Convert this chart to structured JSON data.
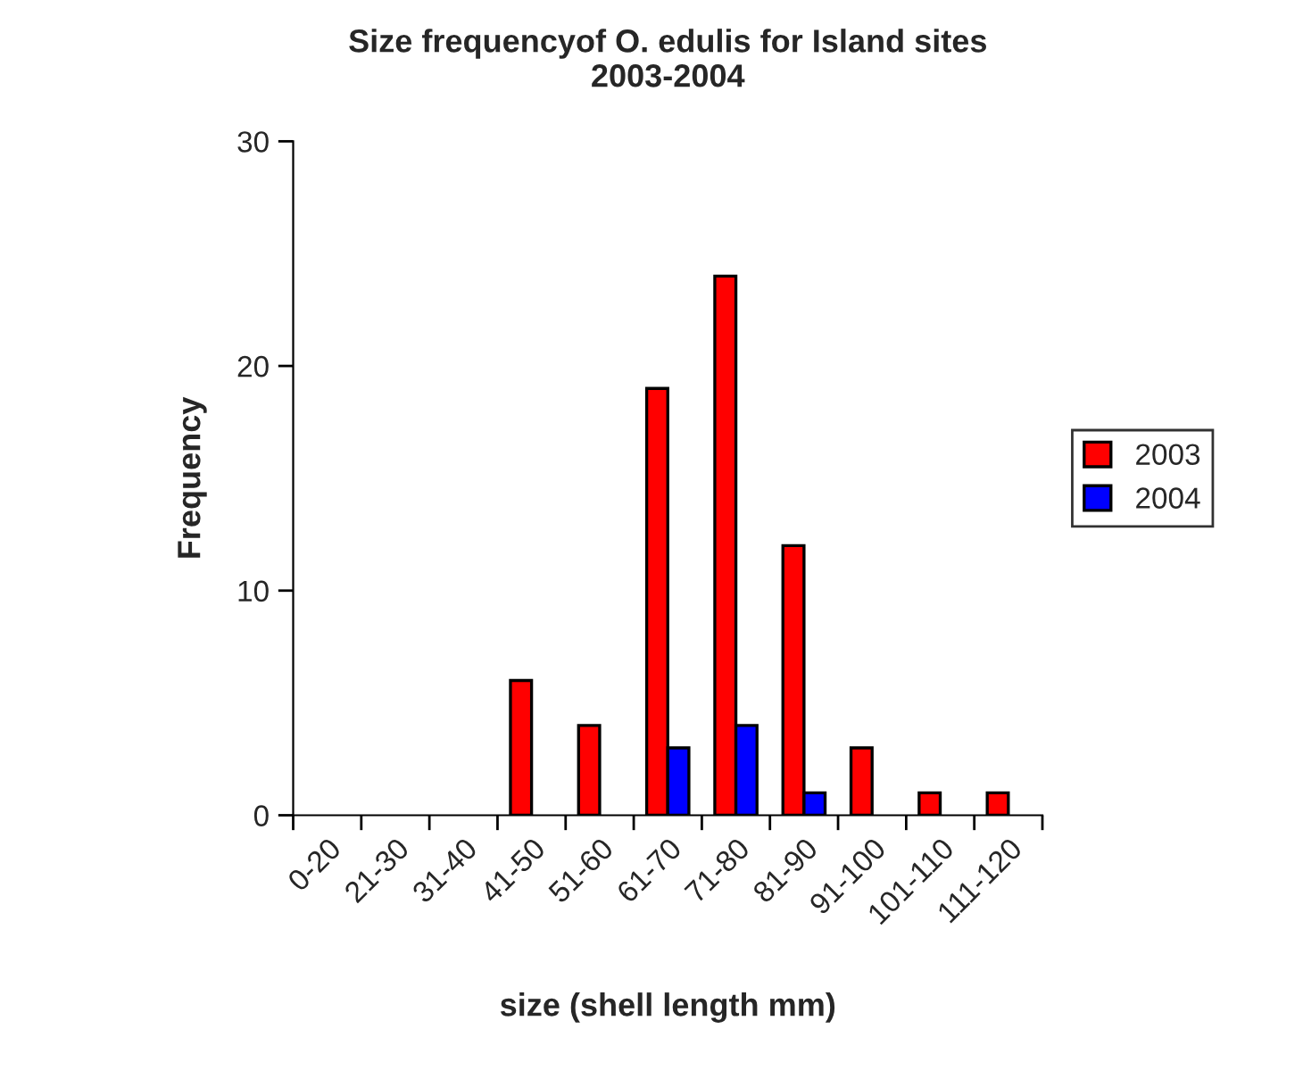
{
  "chart_data": {
    "type": "bar",
    "title": "Size frequencyof O. edulis for Island sites\n2003-2004",
    "xlabel": "size (shell length mm)",
    "ylabel": "Frequency",
    "categories": [
      "0-20",
      "21-30",
      "31-40",
      "41-50",
      "51-60",
      "61-70",
      "71-80",
      "81-90",
      "91-100",
      "101-110",
      "111-120"
    ],
    "series": [
      {
        "name": "2003",
        "color": "#ff0000",
        "values": [
          null,
          null,
          null,
          6,
          4,
          19,
          24,
          12,
          3,
          1,
          1
        ]
      },
      {
        "name": "2004",
        "color": "#0000ff",
        "values": [
          null,
          null,
          null,
          null,
          null,
          3,
          4,
          1,
          null,
          null,
          null
        ]
      }
    ],
    "ylim": [
      0,
      30
    ],
    "yticks": [
      0,
      10,
      20,
      30
    ],
    "grid": false,
    "legend": "right"
  }
}
